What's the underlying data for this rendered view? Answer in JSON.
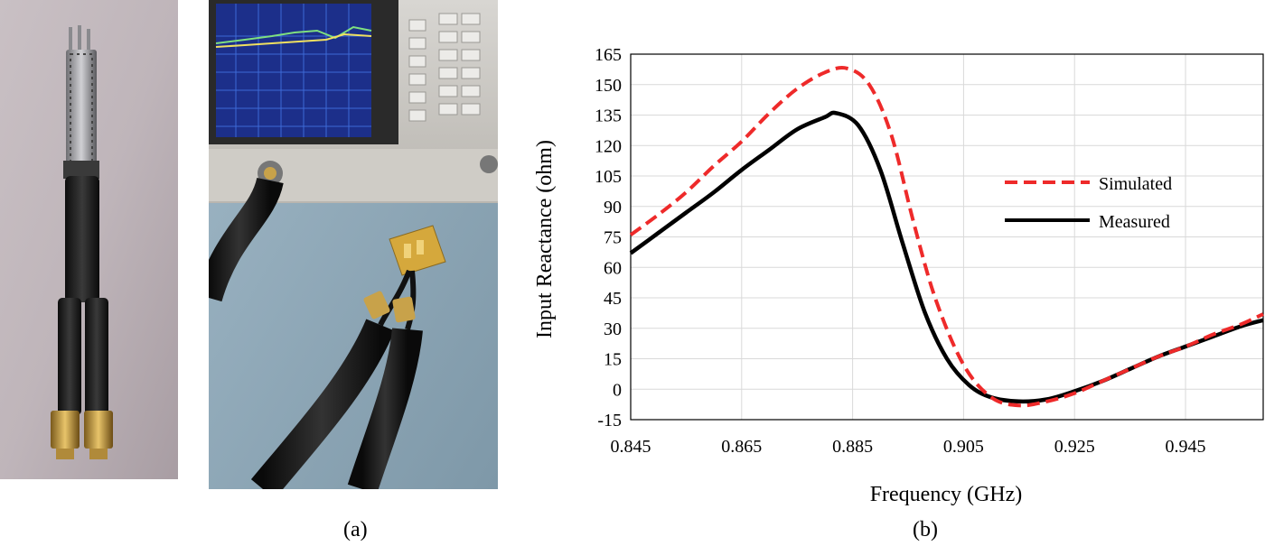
{
  "panels": {
    "a_label": "(a)",
    "b_label": "(b)"
  },
  "photos": {
    "a_left": "probe with two cables and SMA connectors",
    "a_right": "network analyzer with antenna under test"
  },
  "chart_data": {
    "type": "line",
    "xlabel": "Frequency (GHz)",
    "ylabel": "Input Reactance (ohm)",
    "xlim": [
      0.845,
      0.959
    ],
    "ylim": [
      -15,
      165
    ],
    "xticks": [
      "0.845",
      "0.865",
      "0.885",
      "0.905",
      "0.925",
      "0.945"
    ],
    "yticks": [
      "-15",
      "0",
      "15",
      "30",
      "45",
      "60",
      "75",
      "90",
      "105",
      "120",
      "135",
      "150",
      "165"
    ],
    "grid": true,
    "legend_position": "right",
    "series": [
      {
        "name": "Simulated",
        "color": "#ee2a2a",
        "style": "dashed",
        "x": [
          0.845,
          0.85,
          0.855,
          0.86,
          0.865,
          0.87,
          0.875,
          0.88,
          0.884,
          0.888,
          0.892,
          0.896,
          0.9,
          0.905,
          0.91,
          0.915,
          0.92,
          0.925,
          0.93,
          0.935,
          0.94,
          0.945,
          0.95,
          0.955,
          0.959
        ],
        "y": [
          76,
          86,
          97,
          110,
          122,
          136,
          148,
          156,
          158,
          150,
          125,
          82,
          44,
          12,
          -4,
          -8,
          -6,
          -2,
          4,
          10,
          16,
          21,
          27,
          32,
          37
        ]
      },
      {
        "name": "Measured",
        "color": "#000000",
        "style": "solid",
        "x": [
          0.845,
          0.85,
          0.855,
          0.86,
          0.865,
          0.87,
          0.875,
          0.88,
          0.882,
          0.886,
          0.89,
          0.894,
          0.898,
          0.902,
          0.906,
          0.91,
          0.915,
          0.92,
          0.925,
          0.93,
          0.935,
          0.94,
          0.945,
          0.95,
          0.955,
          0.959
        ],
        "y": [
          67,
          77,
          87,
          97,
          108,
          118,
          128,
          134,
          136,
          130,
          108,
          72,
          38,
          15,
          2,
          -4,
          -6,
          -5,
          -1,
          4,
          10,
          16,
          21,
          26,
          31,
          34
        ]
      }
    ]
  }
}
